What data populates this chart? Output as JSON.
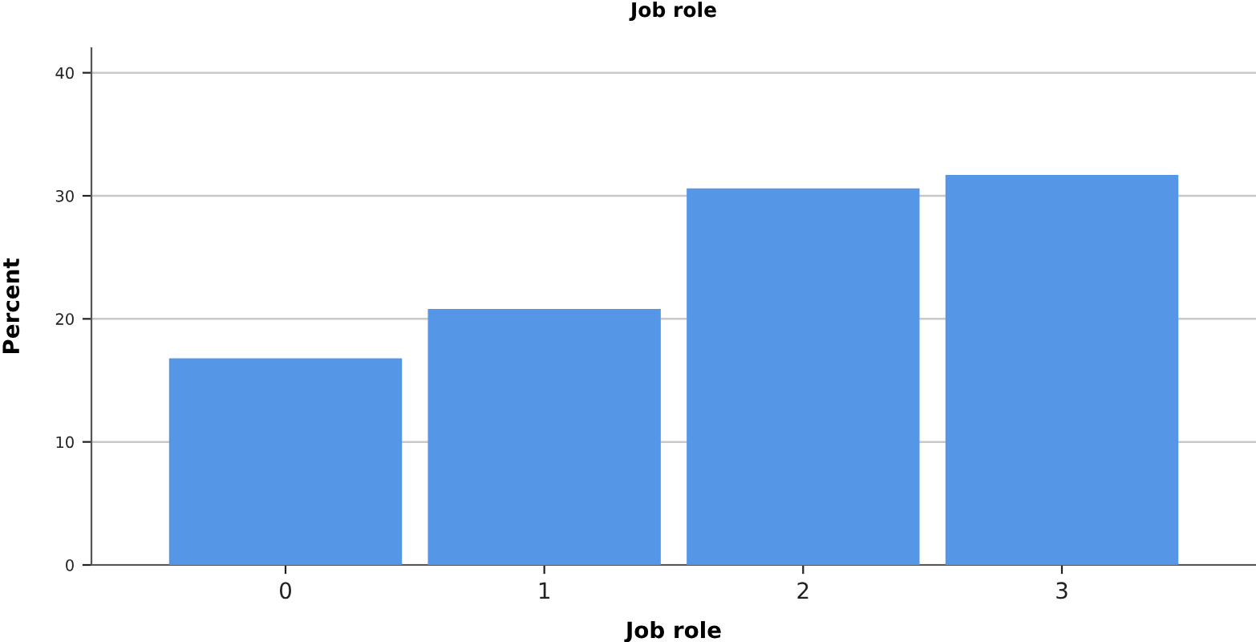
{
  "chart_data": {
    "type": "bar",
    "title": "Job role",
    "xlabel": "Job role",
    "ylabel": "Percent",
    "categories": [
      "0",
      "1",
      "2",
      "3"
    ],
    "values": [
      16.8,
      20.8,
      30.6,
      31.7
    ],
    "color": "#5596e6",
    "ylim": [
      0,
      42
    ],
    "yticks": [
      0,
      10,
      20,
      30,
      40
    ],
    "grid": "y"
  }
}
